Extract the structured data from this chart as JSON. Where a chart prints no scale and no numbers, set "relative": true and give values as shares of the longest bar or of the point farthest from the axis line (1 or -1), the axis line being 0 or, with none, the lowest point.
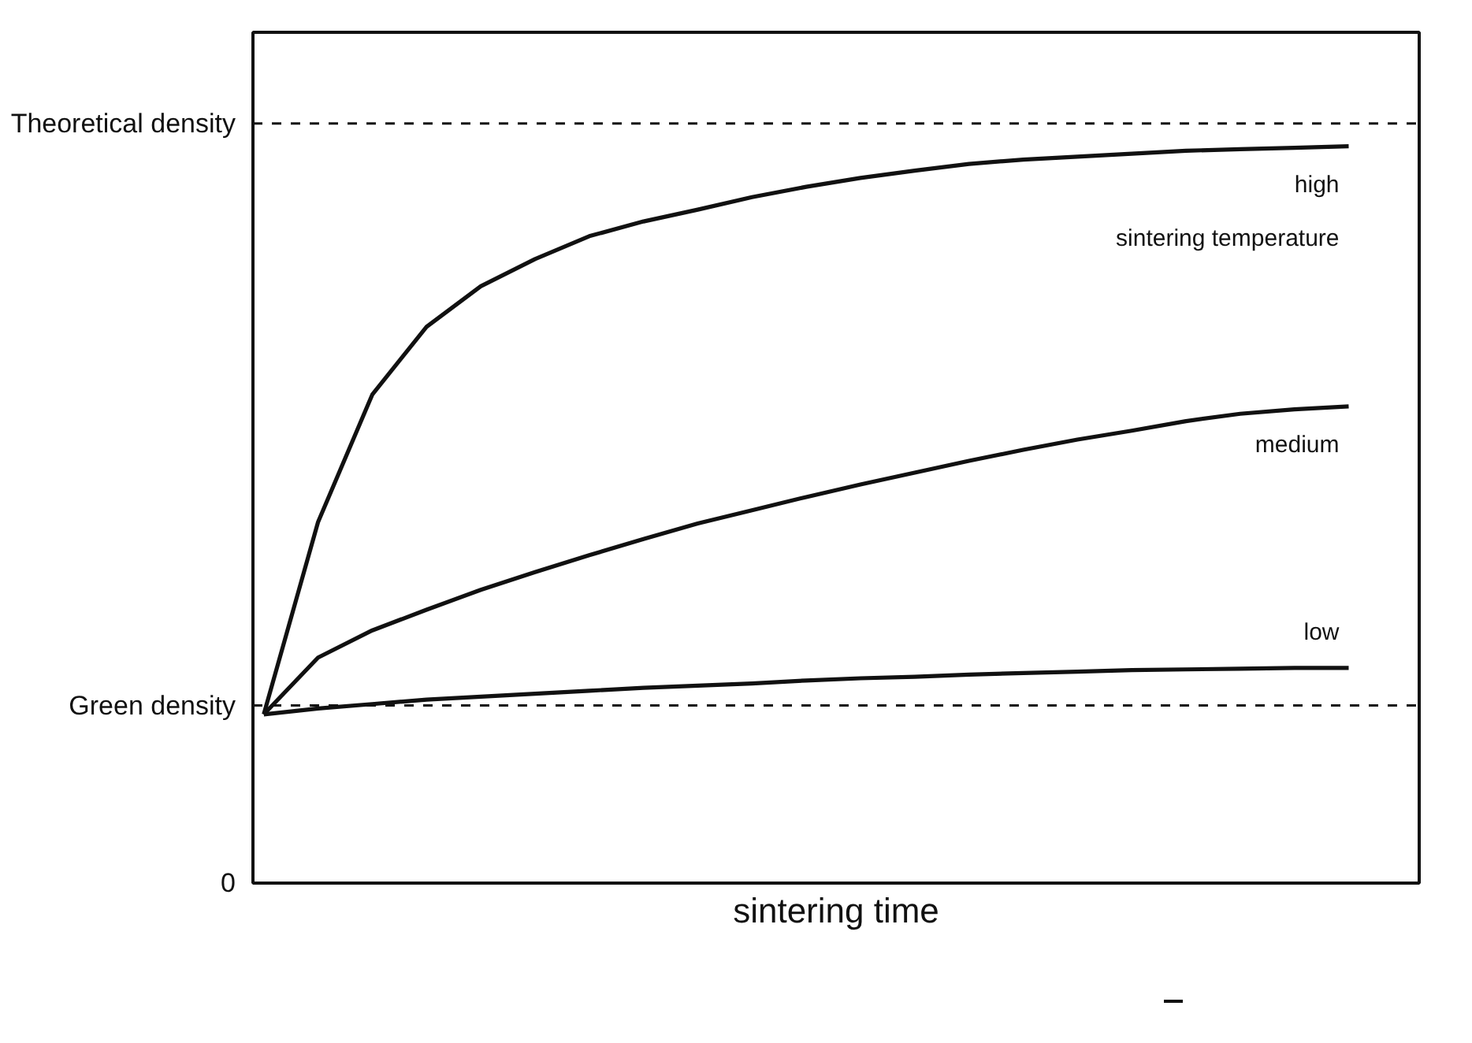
{
  "chart_data": {
    "type": "line",
    "relative": true,
    "xlabel": "sintering time",
    "categories": [
      null,
      null,
      null,
      null,
      null,
      null,
      null,
      null,
      null,
      null,
      null,
      null,
      null,
      null,
      null,
      null,
      null,
      null,
      null,
      null,
      null
    ],
    "series": [
      {
        "name": "high",
        "color": "#111111",
        "values": [
          0.229,
          0.49,
          0.663,
          0.755,
          0.81,
          0.847,
          0.878,
          0.898,
          0.914,
          0.931,
          0.945,
          0.957,
          0.967,
          0.976,
          0.982,
          0.986,
          0.99,
          0.994,
          0.996,
          0.998,
          1
        ]
      },
      {
        "name": "medium",
        "color": "#111111",
        "values": [
          0.229,
          0.306,
          0.343,
          0.371,
          0.398,
          0.422,
          0.445,
          0.467,
          0.488,
          0.506,
          0.524,
          0.541,
          0.557,
          0.573,
          0.588,
          0.602,
          0.614,
          0.627,
          0.637,
          0.643,
          0.647
        ]
      },
      {
        "name": "low",
        "color": "#111111",
        "values": [
          0.229,
          0.237,
          0.243,
          0.249,
          0.253,
          0.257,
          0.261,
          0.265,
          0.268,
          0.271,
          0.275,
          0.278,
          0.28,
          0.283,
          0.285,
          0.287,
          0.289,
          0.29,
          0.291,
          0.292,
          0.292
        ]
      }
    ],
    "ref_lines": [
      {
        "axis": "y",
        "value": 1.031,
        "label": "Theoretical density",
        "color": "#111111",
        "line_style": "dashed"
      },
      {
        "axis": "y",
        "value": 0.241,
        "label": "Green density",
        "color": "#111111",
        "line_style": "dashed"
      }
    ],
    "annotations": [
      "0",
      "sintering temperature"
    ]
  }
}
